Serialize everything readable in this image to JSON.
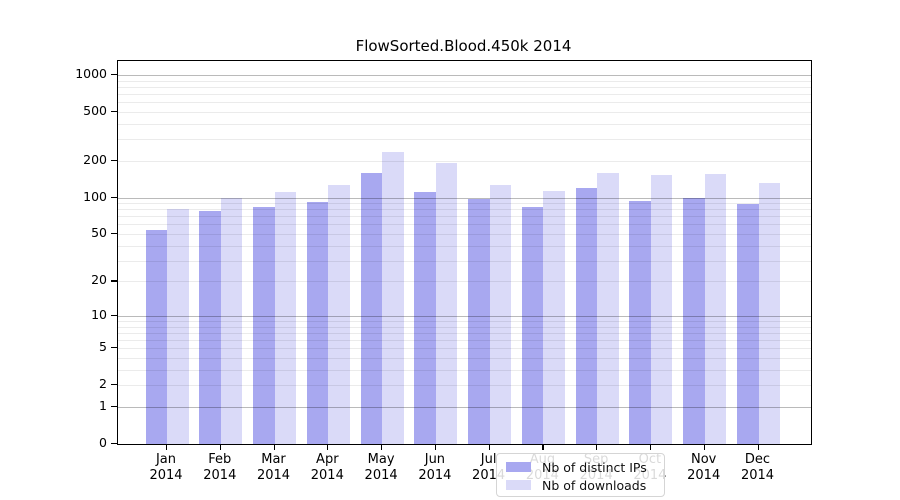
{
  "title": "FlowSorted.Blood.450k 2014",
  "chart_data": {
    "type": "bar",
    "title": "FlowSorted.Blood.450k 2014",
    "categories": [
      "Jan 2014",
      "Feb 2014",
      "Mar 2014",
      "Apr 2014",
      "May 2014",
      "Jun 2014",
      "Jul 2014",
      "Aug 2014",
      "Sep 2014",
      "Oct 2014",
      "Nov 2014",
      "Dec 2014"
    ],
    "x_tick_line1": [
      "Jan",
      "Feb",
      "Mar",
      "Apr",
      "May",
      "Jun",
      "Jul",
      "Aug",
      "Sep",
      "Oct",
      "Nov",
      "Dec"
    ],
    "x_tick_line2": [
      "2014",
      "2014",
      "2014",
      "2014",
      "2014",
      "2014",
      "2014",
      "2014",
      "2014",
      "2014",
      "2014",
      "2014"
    ],
    "series": [
      {
        "name": "Nb of distinct IPs",
        "color": "#a8a8f0",
        "values": [
          54,
          78,
          83,
          92,
          158,
          111,
          97,
          83,
          120,
          94,
          100,
          89
        ]
      },
      {
        "name": "Nb of downloads",
        "color": "#dadaf8",
        "values": [
          80,
          100,
          112,
          127,
          238,
          190,
          126,
          113,
          159,
          152,
          155,
          132
        ]
      }
    ],
    "xlabel": "",
    "ylabel": "",
    "yscale": "log1p",
    "ylim": [
      0,
      1300
    ],
    "ytick_values": [
      0,
      1,
      2,
      5,
      10,
      20,
      50,
      100,
      200,
      500,
      1000
    ],
    "ytick_labels": [
      "0",
      "1",
      "2",
      "5",
      "10",
      "20",
      "50",
      "100",
      "200",
      "500",
      "1000"
    ],
    "grid_major_values": [
      1,
      10,
      100,
      1000
    ],
    "grid_minor_values": [
      2,
      3,
      4,
      5,
      6,
      7,
      8,
      9,
      20,
      30,
      40,
      50,
      60,
      70,
      80,
      90,
      200,
      300,
      400,
      500,
      600,
      700,
      800,
      900
    ],
    "grid": "on",
    "legend_position": "bottom-center"
  }
}
